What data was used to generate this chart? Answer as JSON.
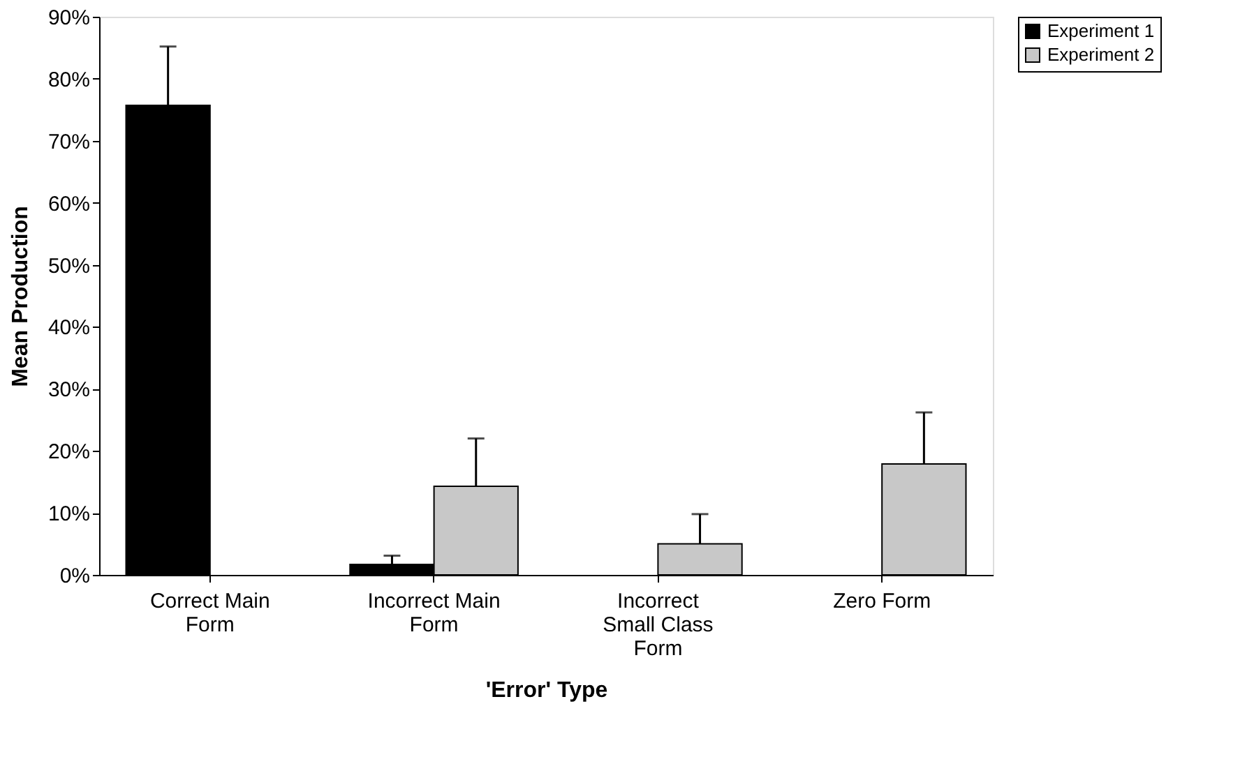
{
  "chart_data": {
    "type": "bar",
    "xlabel": "'Error' Type",
    "ylabel": "Mean Production",
    "categories": [
      "Correct Main Form",
      "Incorrect Main Form",
      "Incorrect Small Class Form",
      "Zero Form"
    ],
    "series": [
      {
        "name": "Experiment 1",
        "color": "#000000",
        "values": [
          75.7,
          1.7,
          null,
          null
        ],
        "errors": [
          [
            75.7,
            85.2
          ],
          [
            1.7,
            3.1
          ],
          null,
          null
        ]
      },
      {
        "name": "Experiment 2",
        "color": "#c8c8c8",
        "values": [
          null,
          14.3,
          5.0,
          17.9
        ],
        "errors": [
          null,
          [
            14.3,
            22.0
          ],
          [
            5.0,
            9.8
          ],
          [
            17.9,
            26.2
          ]
        ]
      }
    ],
    "ylim": [
      0,
      90
    ],
    "yticks": [
      {
        "value": 0,
        "label": "0%"
      },
      {
        "value": 10,
        "label": "10%"
      },
      {
        "value": 20,
        "label": "20%"
      },
      {
        "value": 30,
        "label": "30%"
      },
      {
        "value": 40,
        "label": "40%"
      },
      {
        "value": 50,
        "label": "50%"
      },
      {
        "value": 60,
        "label": "60%"
      },
      {
        "value": 70,
        "label": "70%"
      },
      {
        "value": 80,
        "label": "80%"
      },
      {
        "value": 90,
        "label": "90%"
      }
    ],
    "grid": false,
    "legend": "right"
  }
}
